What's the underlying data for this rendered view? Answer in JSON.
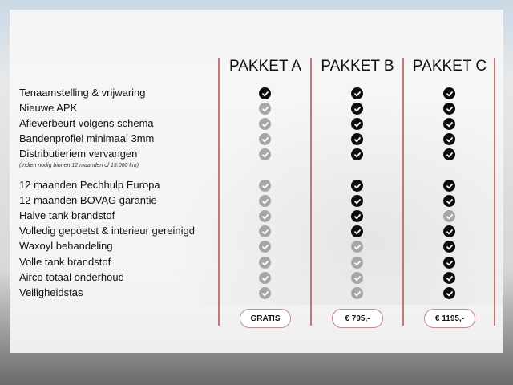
{
  "packages": [
    {
      "name": "PAKKET A",
      "price": "GRATIS"
    },
    {
      "name": "PAKKET B",
      "price": "€ 795,-"
    },
    {
      "name": "PAKKET C",
      "price": "€ 1195,-"
    }
  ],
  "features": [
    {
      "label": "Tenaamstelling & vrijwaring",
      "included": [
        true,
        true,
        true
      ]
    },
    {
      "label": "Nieuwe APK",
      "included": [
        false,
        true,
        true
      ]
    },
    {
      "label": "Afleverbeurt volgens schema",
      "included": [
        false,
        true,
        true
      ]
    },
    {
      "label": "Bandenprofiel minimaal 3mm",
      "included": [
        false,
        true,
        true
      ]
    },
    {
      "label": "Distributieriem vervangen",
      "included": [
        false,
        true,
        true
      ]
    },
    {
      "label": "12 maanden Pechhulp Europa",
      "included": [
        false,
        true,
        true
      ]
    },
    {
      "label": "12 maanden BOVAG garantie",
      "included": [
        false,
        true,
        true
      ]
    },
    {
      "label": "Halve tank brandstof",
      "included": [
        false,
        true,
        false
      ]
    },
    {
      "label": "Volledig gepoetst & interieur gereinigd",
      "included": [
        false,
        true,
        true
      ]
    },
    {
      "label": "Waxoyl behandeling",
      "included": [
        false,
        false,
        true
      ]
    },
    {
      "label": "Volle tank brandstof",
      "included": [
        false,
        false,
        true
      ]
    },
    {
      "label": "Airco totaal onderhoud",
      "included": [
        false,
        false,
        true
      ]
    },
    {
      "label": "Veiligheidstas",
      "included": [
        false,
        false,
        true
      ]
    }
  ],
  "note": "(Indien nodig binnen 12 maanden of 15.000 km)",
  "icons": {
    "included": "check-circle-icon",
    "excluded": "check-circle-grey-icon"
  },
  "colors": {
    "included": "#0d0d0d",
    "excluded": "#a6a6a6",
    "divider": "#b55a5a"
  }
}
